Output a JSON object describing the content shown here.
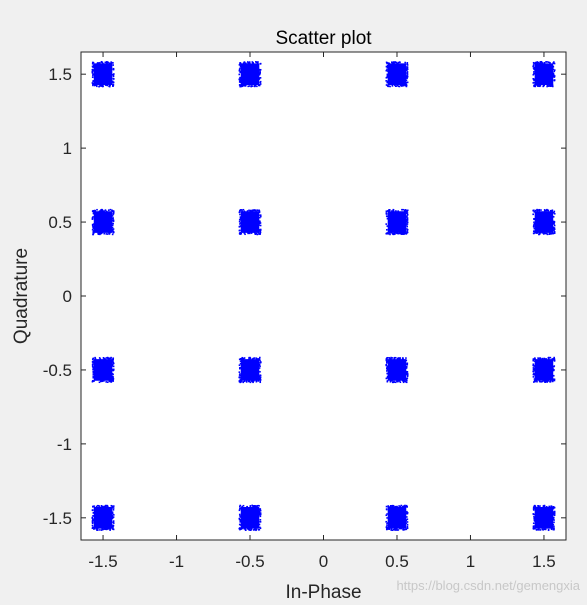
{
  "figure": {
    "background_color": "#f0f0f0",
    "axes_color": "#ffffff",
    "frame_color": "#262626",
    "watermark": "https://blog.csdn.net/gemengxia"
  },
  "chart_data": {
    "type": "scatter",
    "title": "Scatter plot",
    "xlabel": "In-Phase",
    "ylabel": "Quadrature",
    "xlim": [
      -1.65,
      1.65
    ],
    "ylim": [
      -1.65,
      1.65
    ],
    "grid": false,
    "legend": "none",
    "x_ticks": [
      -1.5,
      -1,
      -0.5,
      0,
      0.5,
      1,
      1.5
    ],
    "x_tick_labels": [
      "-1.5",
      "-1",
      "-0.5",
      "0",
      "0.5",
      "1",
      "1.5"
    ],
    "y_ticks": [
      1.5,
      1,
      0.5,
      0,
      -0.5,
      -1,
      -1.5
    ],
    "y_tick_labels": [
      "1.5",
      "1",
      "0.5",
      "0",
      "-0.5",
      "-1",
      "-1.5"
    ],
    "series": [
      {
        "color": "#0000ff",
        "marker": "point",
        "cluster_spread": [
          0.07,
          0.08
        ],
        "points": [
          {
            "x": -1.5,
            "y": 1.5
          },
          {
            "x": -0.5,
            "y": 1.5
          },
          {
            "x": 0.5,
            "y": 1.5
          },
          {
            "x": 1.5,
            "y": 1.5
          },
          {
            "x": -1.5,
            "y": 0.5
          },
          {
            "x": -0.5,
            "y": 0.5
          },
          {
            "x": 0.5,
            "y": 0.5
          },
          {
            "x": 1.5,
            "y": 0.5
          },
          {
            "x": -1.5,
            "y": -0.5
          },
          {
            "x": -0.5,
            "y": -0.5
          },
          {
            "x": 0.5,
            "y": -0.5
          },
          {
            "x": 1.5,
            "y": -0.5
          },
          {
            "x": -1.5,
            "y": -1.5
          },
          {
            "x": -0.5,
            "y": -1.5
          },
          {
            "x": 0.5,
            "y": -1.5
          },
          {
            "x": 1.5,
            "y": -1.5
          }
        ]
      }
    ]
  }
}
